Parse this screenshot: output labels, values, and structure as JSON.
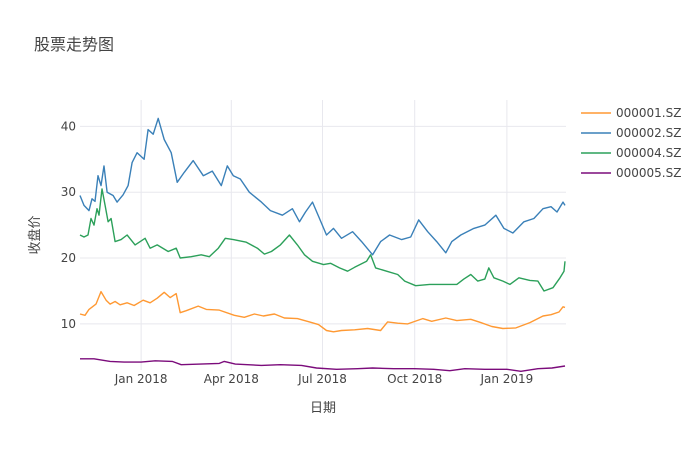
{
  "chart_data": {
    "type": "line",
    "title": "股票走势图",
    "xlabel": "日期",
    "ylabel": "收盘价",
    "xlim": [
      "2017-11-01",
      "2019-03-01"
    ],
    "ylim": [
      3,
      44
    ],
    "grid": true,
    "legend_position": "top-right",
    "xticks": [
      {
        "date": "2018-01-01",
        "label": "Jan 2018"
      },
      {
        "date": "2018-04-01",
        "label": "Apr 2018"
      },
      {
        "date": "2018-07-01",
        "label": "Jul 2018"
      },
      {
        "date": "2018-10-01",
        "label": "Oct 2018"
      },
      {
        "date": "2019-01-01",
        "label": "Jan 2019"
      }
    ],
    "yticks": [
      {
        "value": 10,
        "label": "10"
      },
      {
        "value": 20,
        "label": "20"
      },
      {
        "value": 30,
        "label": "30"
      },
      {
        "value": 40,
        "label": "40"
      }
    ],
    "series": [
      {
        "name": "000001.SZ",
        "color": "#ff9933",
        "points": [
          [
            "2017-11-01",
            11.5
          ],
          [
            "2017-11-06",
            11.3
          ],
          [
            "2017-11-10",
            12.2
          ],
          [
            "2017-11-17",
            13.0
          ],
          [
            "2017-11-22",
            14.9
          ],
          [
            "2017-11-27",
            13.6
          ],
          [
            "2017-12-01",
            13.0
          ],
          [
            "2017-12-06",
            13.4
          ],
          [
            "2017-12-11",
            12.9
          ],
          [
            "2017-12-18",
            13.2
          ],
          [
            "2017-12-25",
            12.8
          ],
          [
            "2018-01-03",
            13.6
          ],
          [
            "2018-01-10",
            13.2
          ],
          [
            "2018-01-17",
            13.9
          ],
          [
            "2018-01-24",
            14.8
          ],
          [
            "2018-01-30",
            14.0
          ],
          [
            "2018-02-05",
            14.6
          ],
          [
            "2018-02-09",
            11.7
          ],
          [
            "2018-02-15",
            12.0
          ],
          [
            "2018-02-27",
            12.7
          ],
          [
            "2018-03-07",
            12.2
          ],
          [
            "2018-03-20",
            12.1
          ],
          [
            "2018-04-04",
            11.3
          ],
          [
            "2018-04-14",
            11.0
          ],
          [
            "2018-04-24",
            11.5
          ],
          [
            "2018-05-03",
            11.2
          ],
          [
            "2018-05-14",
            11.5
          ],
          [
            "2018-05-24",
            10.9
          ],
          [
            "2018-06-06",
            10.8
          ],
          [
            "2018-06-18",
            10.3
          ],
          [
            "2018-06-27",
            9.9
          ],
          [
            "2018-07-05",
            9.0
          ],
          [
            "2018-07-12",
            8.8
          ],
          [
            "2018-07-20",
            9.0
          ],
          [
            "2018-08-02",
            9.1
          ],
          [
            "2018-08-15",
            9.3
          ],
          [
            "2018-08-28",
            9.0
          ],
          [
            "2018-09-04",
            10.3
          ],
          [
            "2018-09-14",
            10.1
          ],
          [
            "2018-09-24",
            10.0
          ],
          [
            "2018-10-09",
            10.8
          ],
          [
            "2018-10-18",
            10.4
          ],
          [
            "2018-11-01",
            10.9
          ],
          [
            "2018-11-12",
            10.5
          ],
          [
            "2018-11-26",
            10.7
          ],
          [
            "2018-12-06",
            10.2
          ],
          [
            "2018-12-17",
            9.6
          ],
          [
            "2018-12-28",
            9.3
          ],
          [
            "2019-01-10",
            9.4
          ],
          [
            "2019-01-24",
            10.2
          ],
          [
            "2019-02-06",
            11.2
          ],
          [
            "2019-02-14",
            11.4
          ],
          [
            "2019-02-22",
            11.8
          ],
          [
            "2019-02-26",
            12.6
          ],
          [
            "2019-02-28",
            12.5
          ]
        ]
      },
      {
        "name": "000002.SZ",
        "color": "#3a80b8",
        "points": [
          [
            "2017-11-01",
            29.5
          ],
          [
            "2017-11-05",
            28.0
          ],
          [
            "2017-11-10",
            27.2
          ],
          [
            "2017-11-13",
            29.0
          ],
          [
            "2017-11-16",
            28.6
          ],
          [
            "2017-11-19",
            32.5
          ],
          [
            "2017-11-22",
            31.0
          ],
          [
            "2017-11-25",
            34.0
          ],
          [
            "2017-11-28",
            30.0
          ],
          [
            "2017-12-04",
            29.5
          ],
          [
            "2017-12-08",
            28.5
          ],
          [
            "2017-12-14",
            29.6
          ],
          [
            "2017-12-19",
            31.0
          ],
          [
            "2017-12-23",
            34.5
          ],
          [
            "2017-12-28",
            36.0
          ],
          [
            "2018-01-04",
            35.0
          ],
          [
            "2018-01-08",
            39.5
          ],
          [
            "2018-01-13",
            38.8
          ],
          [
            "2018-01-18",
            41.2
          ],
          [
            "2018-01-24",
            38.0
          ],
          [
            "2018-01-31",
            36.0
          ],
          [
            "2018-02-06",
            31.5
          ],
          [
            "2018-02-13",
            33.0
          ],
          [
            "2018-02-22",
            34.8
          ],
          [
            "2018-03-04",
            32.5
          ],
          [
            "2018-03-13",
            33.2
          ],
          [
            "2018-03-22",
            31.0
          ],
          [
            "2018-03-28",
            34.0
          ],
          [
            "2018-04-03",
            32.5
          ],
          [
            "2018-04-10",
            32.0
          ],
          [
            "2018-04-19",
            30.0
          ],
          [
            "2018-05-01",
            28.5
          ],
          [
            "2018-05-10",
            27.2
          ],
          [
            "2018-05-22",
            26.5
          ],
          [
            "2018-06-01",
            27.5
          ],
          [
            "2018-06-08",
            25.5
          ],
          [
            "2018-06-14",
            27.0
          ],
          [
            "2018-06-21",
            28.5
          ],
          [
            "2018-06-28",
            26.0
          ],
          [
            "2018-07-05",
            23.5
          ],
          [
            "2018-07-12",
            24.5
          ],
          [
            "2018-07-20",
            23.0
          ],
          [
            "2018-07-31",
            24.0
          ],
          [
            "2018-08-09",
            22.5
          ],
          [
            "2018-08-20",
            20.5
          ],
          [
            "2018-08-28",
            22.5
          ],
          [
            "2018-09-06",
            23.5
          ],
          [
            "2018-09-18",
            22.8
          ],
          [
            "2018-09-27",
            23.2
          ],
          [
            "2018-10-05",
            25.8
          ],
          [
            "2018-10-14",
            24.0
          ],
          [
            "2018-10-23",
            22.5
          ],
          [
            "2018-11-01",
            20.8
          ],
          [
            "2018-11-07",
            22.5
          ],
          [
            "2018-11-16",
            23.5
          ],
          [
            "2018-11-29",
            24.5
          ],
          [
            "2018-12-10",
            25.0
          ],
          [
            "2018-12-21",
            26.5
          ],
          [
            "2018-12-29",
            24.5
          ],
          [
            "2019-01-07",
            23.8
          ],
          [
            "2019-01-18",
            25.5
          ],
          [
            "2019-01-28",
            26.0
          ],
          [
            "2019-02-06",
            27.5
          ],
          [
            "2019-02-14",
            27.8
          ],
          [
            "2019-02-20",
            27.0
          ],
          [
            "2019-02-26",
            28.5
          ],
          [
            "2019-02-28",
            28.0
          ]
        ]
      },
      {
        "name": "000004.SZ",
        "color": "#2ca05a",
        "points": [
          [
            "2017-11-01",
            23.5
          ],
          [
            "2017-11-05",
            23.2
          ],
          [
            "2017-11-09",
            23.5
          ],
          [
            "2017-11-12",
            26.0
          ],
          [
            "2017-11-15",
            25.0
          ],
          [
            "2017-11-18",
            27.5
          ],
          [
            "2017-11-20",
            26.5
          ],
          [
            "2017-11-23",
            30.5
          ],
          [
            "2017-11-26",
            28.0
          ],
          [
            "2017-11-29",
            25.5
          ],
          [
            "2017-12-02",
            26.0
          ],
          [
            "2017-12-06",
            22.5
          ],
          [
            "2017-12-12",
            22.8
          ],
          [
            "2017-12-18",
            23.5
          ],
          [
            "2017-12-26",
            22.0
          ],
          [
            "2018-01-05",
            23.0
          ],
          [
            "2018-01-10",
            21.5
          ],
          [
            "2018-01-17",
            22.0
          ],
          [
            "2018-01-28",
            21.0
          ],
          [
            "2018-02-05",
            21.5
          ],
          [
            "2018-02-09",
            20.0
          ],
          [
            "2018-02-20",
            20.2
          ],
          [
            "2018-03-02",
            20.5
          ],
          [
            "2018-03-10",
            20.2
          ],
          [
            "2018-03-19",
            21.5
          ],
          [
            "2018-03-26",
            23.0
          ],
          [
            "2018-04-03",
            22.8
          ],
          [
            "2018-04-16",
            22.4
          ],
          [
            "2018-04-27",
            21.5
          ],
          [
            "2018-05-04",
            20.6
          ],
          [
            "2018-05-11",
            21.0
          ],
          [
            "2018-05-20",
            22.0
          ],
          [
            "2018-05-29",
            23.5
          ],
          [
            "2018-06-06",
            22.0
          ],
          [
            "2018-06-13",
            20.5
          ],
          [
            "2018-06-21",
            19.5
          ],
          [
            "2018-07-02",
            19.0
          ],
          [
            "2018-07-09",
            19.2
          ],
          [
            "2018-07-18",
            18.5
          ],
          [
            "2018-07-26",
            18.0
          ],
          [
            "2018-08-02",
            18.6
          ],
          [
            "2018-08-14",
            19.5
          ],
          [
            "2018-08-18",
            20.5
          ],
          [
            "2018-08-23",
            18.5
          ],
          [
            "2018-09-03",
            18.0
          ],
          [
            "2018-09-14",
            17.5
          ],
          [
            "2018-09-21",
            16.5
          ],
          [
            "2018-10-02",
            15.8
          ],
          [
            "2018-10-16",
            16.0
          ],
          [
            "2018-10-30",
            16.0
          ],
          [
            "2018-11-12",
            16.0
          ],
          [
            "2018-11-19",
            16.8
          ],
          [
            "2018-11-26",
            17.5
          ],
          [
            "2018-12-03",
            16.5
          ],
          [
            "2018-12-10",
            16.8
          ],
          [
            "2018-12-14",
            18.5
          ],
          [
            "2018-12-19",
            17.0
          ],
          [
            "2018-12-28",
            16.5
          ],
          [
            "2019-01-04",
            16.0
          ],
          [
            "2019-01-13",
            17.0
          ],
          [
            "2019-01-24",
            16.6
          ],
          [
            "2019-02-01",
            16.5
          ],
          [
            "2019-02-07",
            15.0
          ],
          [
            "2019-02-16",
            15.5
          ],
          [
            "2019-02-23",
            17.0
          ],
          [
            "2019-02-27",
            18.0
          ],
          [
            "2019-02-28",
            19.5
          ]
        ]
      },
      {
        "name": "000005.SZ",
        "color": "#7b0b7b",
        "points": [
          [
            "2017-11-01",
            4.7
          ],
          [
            "2017-11-15",
            4.7
          ],
          [
            "2017-12-01",
            4.3
          ],
          [
            "2017-12-15",
            4.2
          ],
          [
            "2018-01-01",
            4.2
          ],
          [
            "2018-01-15",
            4.4
          ],
          [
            "2018-02-01",
            4.3
          ],
          [
            "2018-02-10",
            3.8
          ],
          [
            "2018-03-01",
            3.9
          ],
          [
            "2018-03-20",
            4.0
          ],
          [
            "2018-03-25",
            4.3
          ],
          [
            "2018-04-05",
            3.9
          ],
          [
            "2018-05-01",
            3.7
          ],
          [
            "2018-05-20",
            3.8
          ],
          [
            "2018-06-10",
            3.7
          ],
          [
            "2018-06-25",
            3.3
          ],
          [
            "2018-07-15",
            3.1
          ],
          [
            "2018-08-05",
            3.2
          ],
          [
            "2018-08-20",
            3.3
          ],
          [
            "2018-09-10",
            3.2
          ],
          [
            "2018-10-01",
            3.2
          ],
          [
            "2018-10-20",
            3.1
          ],
          [
            "2018-11-05",
            2.9
          ],
          [
            "2018-11-20",
            3.2
          ],
          [
            "2018-12-10",
            3.1
          ],
          [
            "2019-01-01",
            3.1
          ],
          [
            "2019-01-15",
            2.8
          ],
          [
            "2019-02-01",
            3.2
          ],
          [
            "2019-02-15",
            3.3
          ],
          [
            "2019-02-28",
            3.6
          ]
        ]
      }
    ]
  }
}
